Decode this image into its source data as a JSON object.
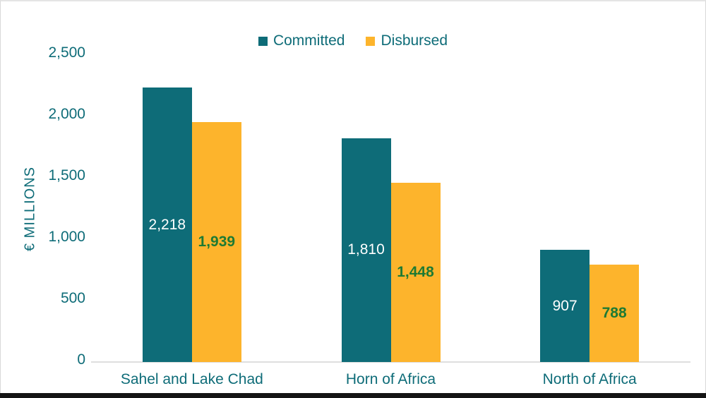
{
  "frame": {
    "background": "#ffffff",
    "border_color": "#d9d9d9",
    "bottom_bar_color": "#141414"
  },
  "chart_data": {
    "type": "bar",
    "title": "",
    "xlabel": "",
    "ylabel": "€ MILLIONS",
    "categories": [
      "Sahel and Lake Chad",
      "Horn of Africa",
      "North of Africa"
    ],
    "series": [
      {
        "name": "Committed",
        "values": [
          2218,
          1810,
          907
        ],
        "value_labels": [
          "2,218",
          "1,810",
          "907"
        ],
        "color": "#0e6c78",
        "label_color": "#ffffff",
        "label_weight": "500"
      },
      {
        "name": "Disbursed",
        "values": [
          1939,
          1448,
          788
        ],
        "value_labels": [
          "1,939",
          "1,448",
          "788"
        ],
        "color": "#fdb42c",
        "label_color": "#1e7a33",
        "label_weight": "700"
      }
    ],
    "ylim": [
      0,
      2500
    ],
    "yticks": [
      {
        "value": 0,
        "label": "0"
      },
      {
        "value": 500,
        "label": "500"
      },
      {
        "value": 1000,
        "label": "1,000"
      },
      {
        "value": 1500,
        "label": "1,500"
      },
      {
        "value": 2000,
        "label": "2,000"
      },
      {
        "value": 2500,
        "label": "2,500"
      }
    ],
    "grid": false,
    "legend_position": "top-center",
    "text_color": "#0e6c78",
    "axis_line_color": "#dedede"
  }
}
